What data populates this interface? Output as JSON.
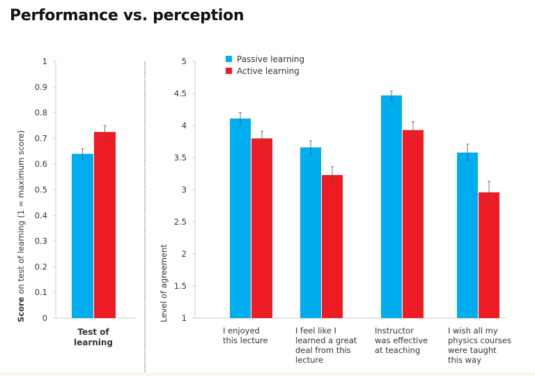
{
  "title": "Performance vs. perception",
  "colors": {
    "passive": "#00aeef",
    "active": "#ed1c24"
  },
  "chart_data": [
    {
      "type": "bar",
      "ylabel_bold": "Score",
      "ylabel": "on test of learning  (1 = maximum score)",
      "ylim": [
        0,
        1
      ],
      "yticks": [
        "0",
        "0.1",
        "0.2",
        "0.3",
        "0.4",
        "0.5",
        "0.6",
        "0.7",
        "0.8",
        "0.9",
        "1"
      ],
      "categories": [
        "Test of learning"
      ],
      "series": [
        {
          "name": "Passive learning",
          "values": [
            0.64
          ],
          "errors": [
            0.02
          ]
        },
        {
          "name": "Active learning",
          "values": [
            0.725
          ],
          "errors": [
            0.025
          ]
        }
      ]
    },
    {
      "type": "bar",
      "ylabel": "Level of agreement",
      "ylim": [
        1,
        5
      ],
      "yticks": [
        "1",
        "1.5",
        "2",
        "2.5",
        "3",
        "3.5",
        "4",
        "4.5",
        "5"
      ],
      "legend": "top-left",
      "categories": [
        "I enjoyed this lecture",
        "I feel like I learned a great deal from this lecture",
        "Instructor was effective at teaching",
        "I wish all my physics courses were taught this way"
      ],
      "series": [
        {
          "name": "Passive learning",
          "values": [
            4.11,
            3.66,
            4.47,
            3.58
          ],
          "errors": [
            0.09,
            0.1,
            0.07,
            0.13
          ]
        },
        {
          "name": "Active learning",
          "values": [
            3.8,
            3.23,
            3.93,
            2.96
          ],
          "errors": [
            0.11,
            0.13,
            0.13,
            0.17
          ]
        }
      ]
    }
  ],
  "category_lines": [
    [
      "Test of",
      "learning"
    ],
    [
      "I enjoyed",
      "this lecture"
    ],
    [
      "I feel like I",
      "learned a great",
      "deal from this",
      "lecture"
    ],
    [
      "Instructor",
      "was effective",
      "at teaching"
    ],
    [
      "I wish all my",
      "physics courses",
      "were taught",
      "this way"
    ]
  ]
}
